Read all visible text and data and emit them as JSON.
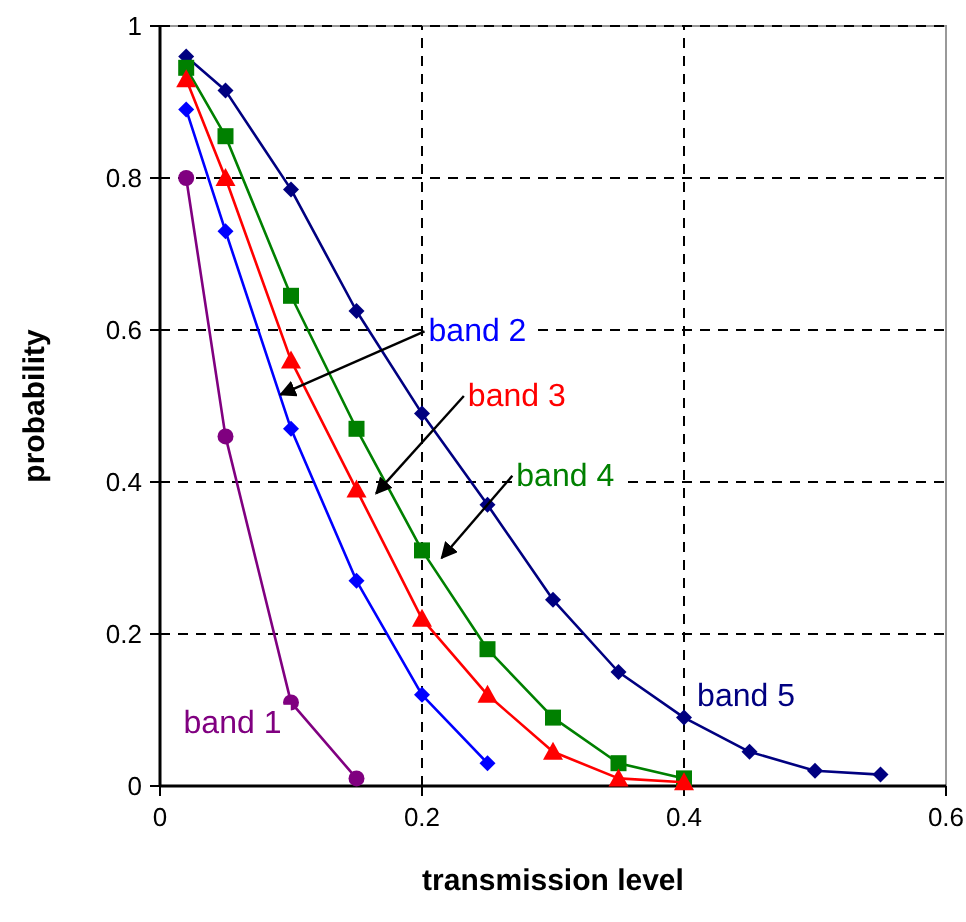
{
  "chart_data": {
    "type": "line",
    "xlabel": "transmission level",
    "ylabel": "probability",
    "xlim": [
      0,
      0.6
    ],
    "ylim": [
      0,
      1
    ],
    "xticks": [
      0,
      0.2,
      0.4,
      0.6
    ],
    "yticks": [
      0,
      0.2,
      0.4,
      0.6,
      0.8,
      1
    ],
    "grid": true,
    "line_style": "solid",
    "series": [
      {
        "name": "band 1",
        "color": "#800080",
        "marker": "circle",
        "x": [
          0.02,
          0.05,
          0.1,
          0.15
        ],
        "values": [
          0.8,
          0.46,
          0.11,
          0.01
        ]
      },
      {
        "name": "band 2",
        "color": "#0000ff",
        "marker": "diamond",
        "x": [
          0.02,
          0.05,
          0.1,
          0.15,
          0.2,
          0.25
        ],
        "values": [
          0.89,
          0.73,
          0.47,
          0.27,
          0.12,
          0.03
        ]
      },
      {
        "name": "band 3",
        "color": "#ff0000",
        "marker": "triangle",
        "x": [
          0.02,
          0.05,
          0.1,
          0.15,
          0.2,
          0.25,
          0.3,
          0.35,
          0.4
        ],
        "values": [
          0.93,
          0.8,
          0.56,
          0.39,
          0.22,
          0.12,
          0.045,
          0.01,
          0.005
        ]
      },
      {
        "name": "band 4",
        "color": "#008000",
        "marker": "square",
        "x": [
          0.02,
          0.05,
          0.1,
          0.15,
          0.2,
          0.25,
          0.3,
          0.35,
          0.4
        ],
        "values": [
          0.945,
          0.855,
          0.645,
          0.47,
          0.31,
          0.18,
          0.09,
          0.03,
          0.01
        ]
      },
      {
        "name": "band 5",
        "color": "#000080",
        "marker": "diamond",
        "x": [
          0.02,
          0.05,
          0.1,
          0.15,
          0.2,
          0.25,
          0.3,
          0.35,
          0.4,
          0.45,
          0.5,
          0.55
        ],
        "values": [
          0.96,
          0.915,
          0.785,
          0.625,
          0.49,
          0.37,
          0.245,
          0.15,
          0.09,
          0.045,
          0.02,
          0.015
        ]
      }
    ]
  }
}
